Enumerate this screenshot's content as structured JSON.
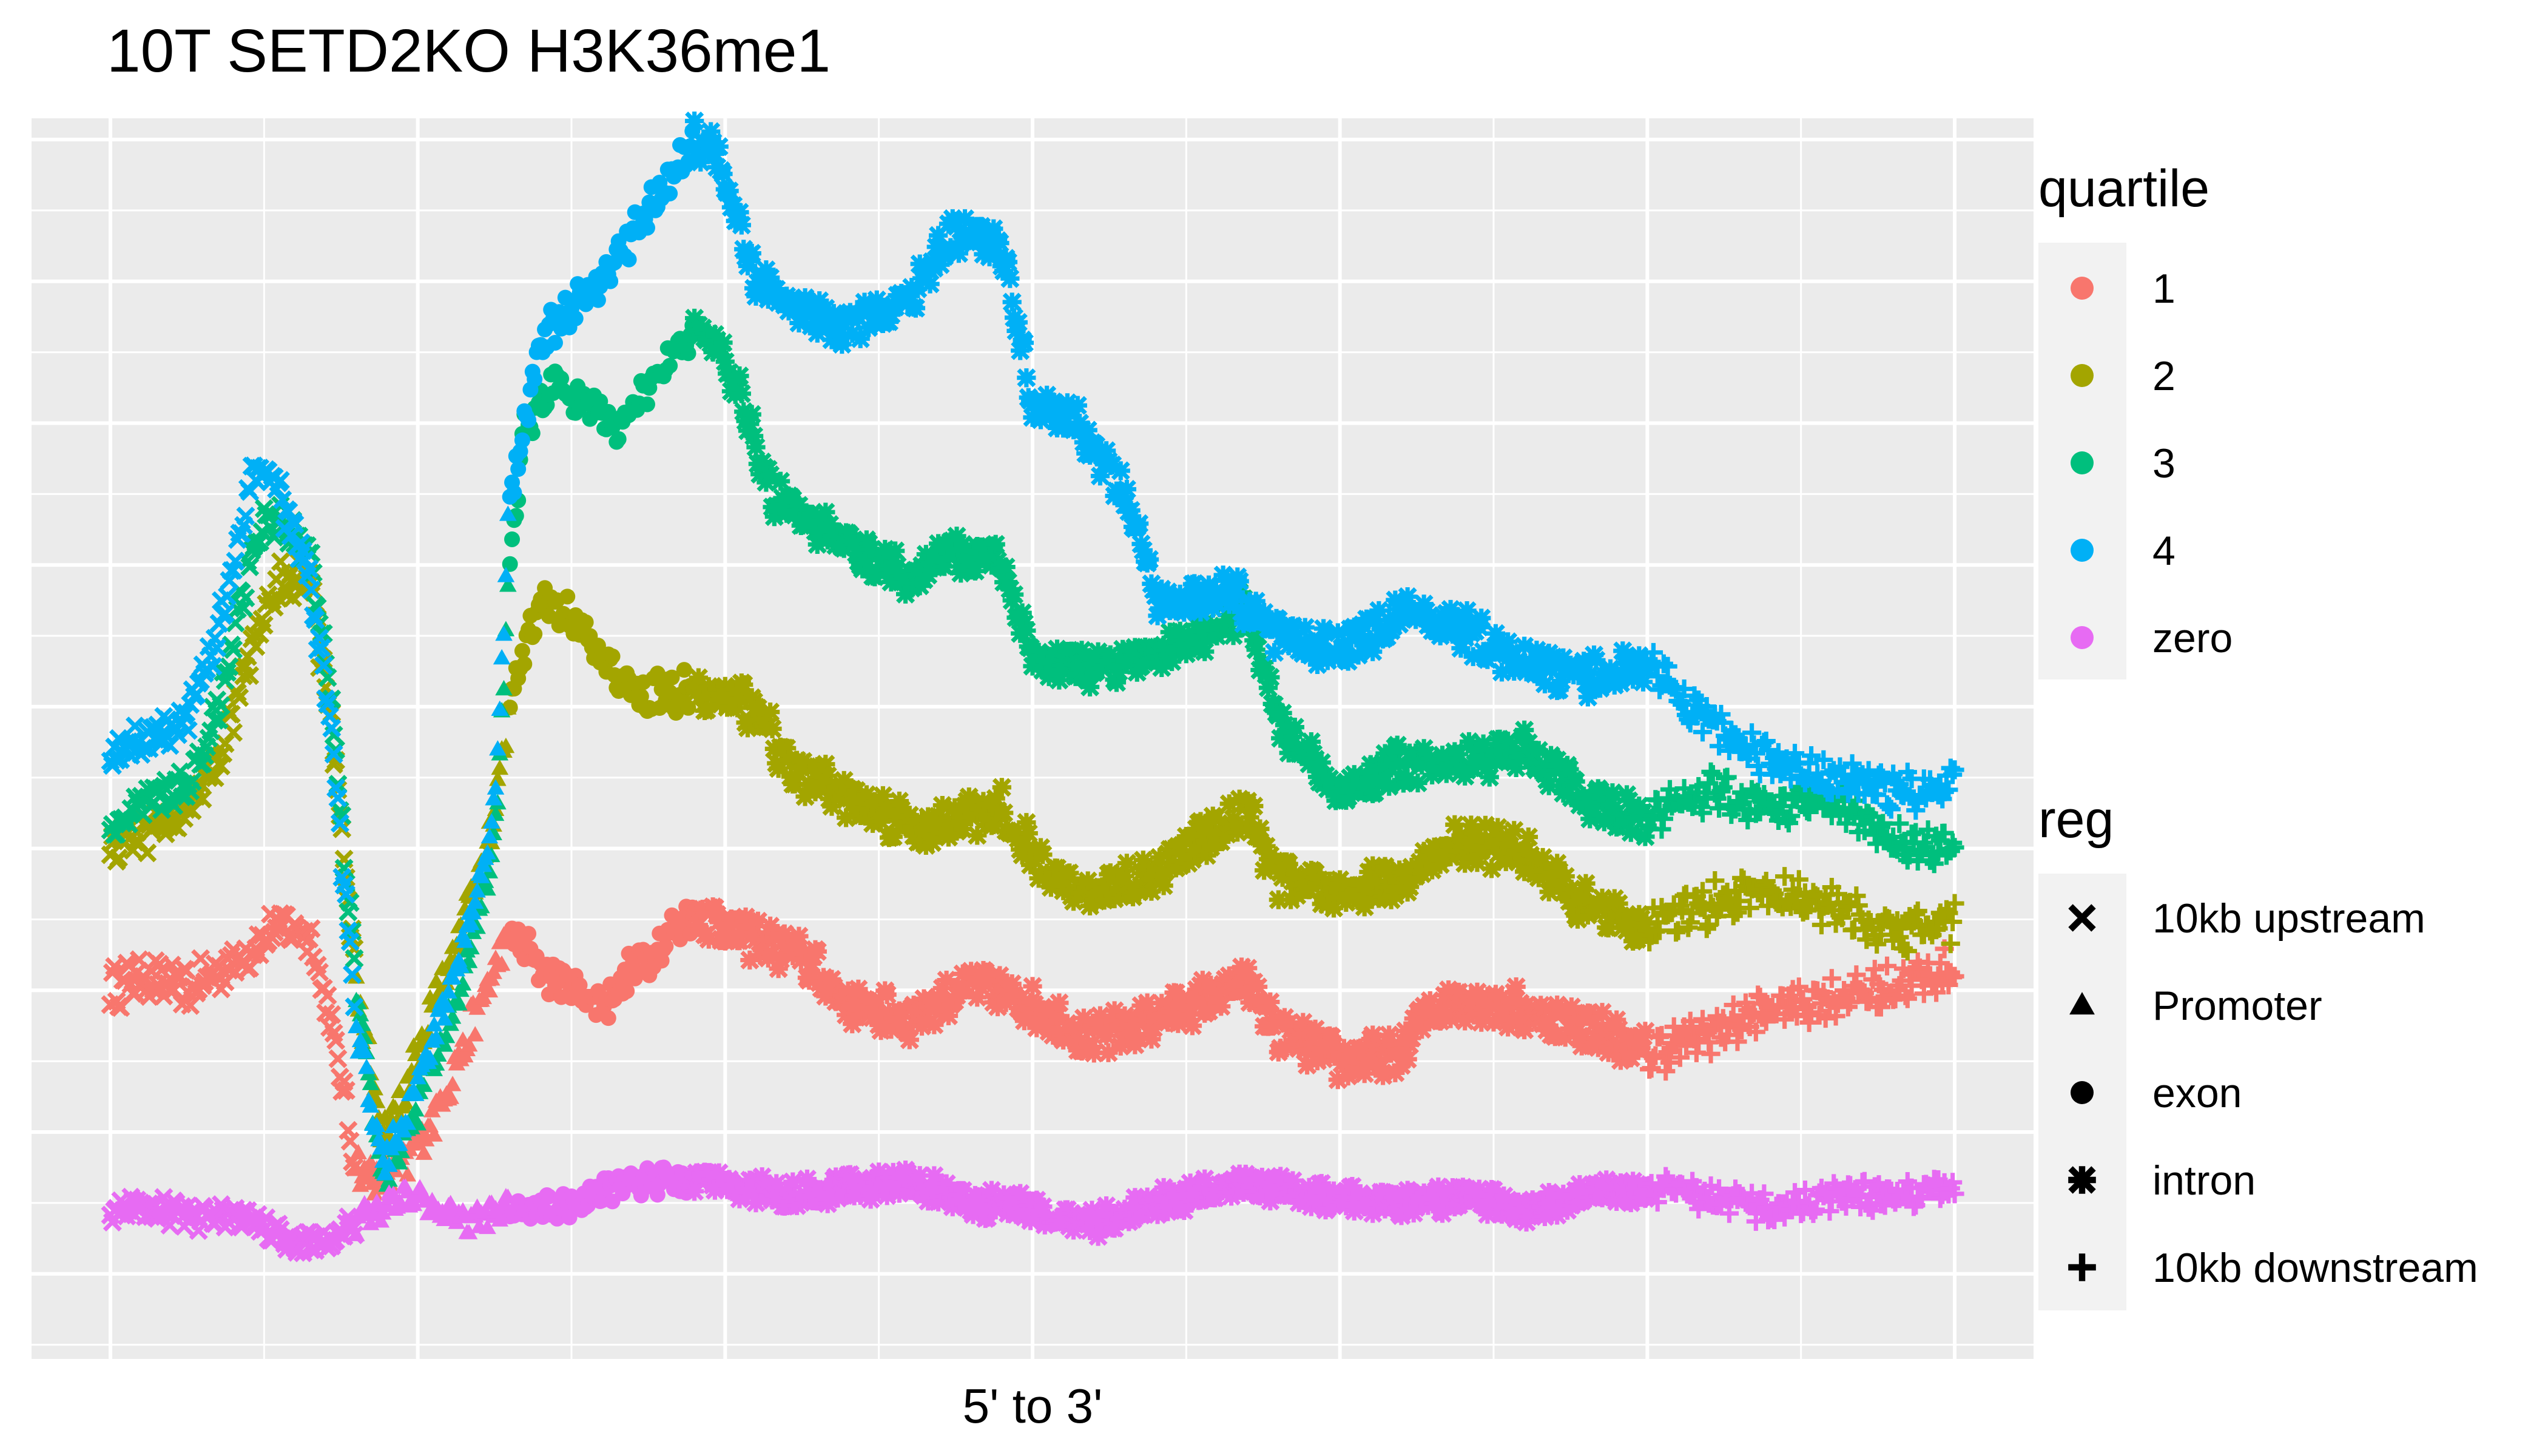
{
  "chart_data": {
    "type": "scatter",
    "title": "10T SETD2KO H3K36me1",
    "xlabel": "5' to 3'",
    "ylabel": "",
    "xlim": [
      0,
      600
    ],
    "ylim": [
      -12,
      163
    ],
    "grid": true,
    "legend_position": "right",
    "panel_background": "#EBEBEB",
    "region_boundaries": [
      {
        "from": 0,
        "to": 80,
        "reg": "10kb upstream"
      },
      {
        "from": 80,
        "to": 130,
        "reg": "Promoter"
      },
      {
        "from": 130,
        "to": 190,
        "reg": "exon"
      },
      {
        "from": 190,
        "to": 500,
        "reg": "intron"
      },
      {
        "from": 500,
        "to": 600,
        "reg": "10kb downstream"
      }
    ],
    "color_legend": {
      "title": "quartile",
      "entries": [
        {
          "label": "1",
          "color": "#F8766D"
        },
        {
          "label": "2",
          "color": "#A3A500"
        },
        {
          "label": "3",
          "color": "#00BF7D"
        },
        {
          "label": "4",
          "color": "#00B0F6"
        },
        {
          "label": "zero",
          "color": "#E76BF3"
        }
      ]
    },
    "shape_legend": {
      "title": "reg",
      "entries": [
        {
          "label": "10kb upstream",
          "symbol": "x-symbol"
        },
        {
          "label": "Promoter",
          "symbol": "triangle-symbol"
        },
        {
          "label": "exon",
          "symbol": "circle-symbol"
        },
        {
          "label": "intron",
          "symbol": "asterisk-symbol"
        },
        {
          "label": "10kb downstream",
          "symbol": "plus-symbol"
        }
      ]
    },
    "series": [
      {
        "name": "1",
        "color": "#F8766D",
        "noise": 2.5,
        "points": [
          [
            0,
            40
          ],
          [
            10,
            42
          ],
          [
            25,
            40
          ],
          [
            40,
            44
          ],
          [
            55,
            49
          ],
          [
            65,
            48
          ],
          [
            72,
            35
          ],
          [
            80,
            15
          ],
          [
            88,
            13
          ],
          [
            95,
            15
          ],
          [
            105,
            22
          ],
          [
            115,
            32
          ],
          [
            125,
            43
          ],
          [
            130,
            48
          ],
          [
            140,
            43
          ],
          [
            160,
            38
          ],
          [
            175,
            45
          ],
          [
            190,
            51
          ],
          [
            210,
            47
          ],
          [
            225,
            45
          ],
          [
            240,
            38
          ],
          [
            260,
            36
          ],
          [
            280,
            41
          ],
          [
            300,
            38
          ],
          [
            320,
            33
          ],
          [
            345,
            37
          ],
          [
            370,
            41
          ],
          [
            380,
            34
          ],
          [
            400,
            30
          ],
          [
            420,
            31
          ],
          [
            428,
            37
          ],
          [
            440,
            39
          ],
          [
            460,
            37
          ],
          [
            480,
            35
          ],
          [
            500,
            31
          ],
          [
            520,
            34
          ],
          [
            545,
            38
          ],
          [
            575,
            40
          ],
          [
            600,
            43
          ]
        ]
      },
      {
        "name": "2",
        "color": "#A3A500",
        "noise": 2.5,
        "points": [
          [
            0,
            60
          ],
          [
            10,
            62
          ],
          [
            25,
            65
          ],
          [
            35,
            73
          ],
          [
            45,
            86
          ],
          [
            55,
            98
          ],
          [
            65,
            97
          ],
          [
            72,
            78
          ],
          [
            80,
            40
          ],
          [
            88,
            20
          ],
          [
            95,
            24
          ],
          [
            105,
            38
          ],
          [
            115,
            49
          ],
          [
            125,
            65
          ],
          [
            130,
            80
          ],
          [
            140,
            96
          ],
          [
            150,
            92
          ],
          [
            170,
            82
          ],
          [
            190,
            82
          ],
          [
            210,
            80
          ],
          [
            220,
            72
          ],
          [
            240,
            67
          ],
          [
            265,
            62
          ],
          [
            290,
            66
          ],
          [
            305,
            56
          ],
          [
            320,
            54
          ],
          [
            340,
            56
          ],
          [
            350,
            60
          ],
          [
            370,
            65
          ],
          [
            380,
            56
          ],
          [
            400,
            53
          ],
          [
            420,
            56
          ],
          [
            440,
            61
          ],
          [
            460,
            59
          ],
          [
            480,
            52
          ],
          [
            500,
            49
          ],
          [
            520,
            52
          ],
          [
            540,
            54
          ],
          [
            560,
            52
          ],
          [
            580,
            48
          ],
          [
            600,
            50
          ]
        ]
      },
      {
        "name": "3",
        "color": "#00BF7D",
        "noise": 2.2,
        "points": [
          [
            0,
            63
          ],
          [
            10,
            67
          ],
          [
            25,
            69
          ],
          [
            35,
            80
          ],
          [
            45,
            100
          ],
          [
            50,
            108
          ],
          [
            60,
            104
          ],
          [
            65,
            102
          ],
          [
            72,
            80
          ],
          [
            80,
            40
          ],
          [
            88,
            14
          ],
          [
            95,
            18
          ],
          [
            105,
            30
          ],
          [
            115,
            42
          ],
          [
            125,
            60
          ],
          [
            130,
            100
          ],
          [
            135,
            120
          ],
          [
            145,
            126
          ],
          [
            165,
            120
          ],
          [
            180,
            128
          ],
          [
            192,
            134
          ],
          [
            205,
            125
          ],
          [
            215,
            110
          ],
          [
            240,
            103
          ],
          [
            260,
            98
          ],
          [
            275,
            102
          ],
          [
            290,
            100
          ],
          [
            300,
            87
          ],
          [
            320,
            85
          ],
          [
            345,
            88
          ],
          [
            370,
            94
          ],
          [
            380,
            77
          ],
          [
            400,
            68
          ],
          [
            420,
            72
          ],
          [
            440,
            72
          ],
          [
            460,
            74
          ],
          [
            480,
            67
          ],
          [
            500,
            64
          ],
          [
            520,
            68
          ],
          [
            540,
            66
          ],
          [
            560,
            67
          ],
          [
            580,
            61
          ],
          [
            600,
            60
          ]
        ]
      },
      {
        "name": "4",
        "color": "#00B0F6",
        "noise": 2.3,
        "points": [
          [
            0,
            73
          ],
          [
            10,
            75
          ],
          [
            25,
            78
          ],
          [
            35,
            90
          ],
          [
            45,
            110
          ],
          [
            48,
            114
          ],
          [
            55,
            110
          ],
          [
            65,
            98
          ],
          [
            72,
            75
          ],
          [
            80,
            35
          ],
          [
            88,
            16
          ],
          [
            95,
            20
          ],
          [
            105,
            33
          ],
          [
            115,
            47
          ],
          [
            125,
            66
          ],
          [
            130,
            110
          ],
          [
            140,
            132
          ],
          [
            160,
            140
          ],
          [
            175,
            150
          ],
          [
            190,
            160
          ],
          [
            198,
            158
          ],
          [
            210,
            140
          ],
          [
            240,
            133
          ],
          [
            260,
            138
          ],
          [
            275,
            147
          ],
          [
            290,
            145
          ],
          [
            300,
            123
          ],
          [
            315,
            120
          ],
          [
            330,
            110
          ],
          [
            340,
            95
          ],
          [
            365,
            96
          ],
          [
            380,
            90
          ],
          [
            400,
            88
          ],
          [
            420,
            93
          ],
          [
            440,
            91
          ],
          [
            460,
            86
          ],
          [
            480,
            84
          ],
          [
            500,
            86
          ],
          [
            520,
            78
          ],
          [
            540,
            72
          ],
          [
            560,
            70
          ],
          [
            580,
            68
          ],
          [
            600,
            69
          ]
        ]
      },
      {
        "name": "zero",
        "color": "#E76BF3",
        "noise": 1.6,
        "points": [
          [
            0,
            9
          ],
          [
            15,
            9
          ],
          [
            30,
            8
          ],
          [
            45,
            8
          ],
          [
            60,
            4
          ],
          [
            72,
            5
          ],
          [
            82,
            8
          ],
          [
            100,
            11
          ],
          [
            115,
            7
          ],
          [
            130,
            9
          ],
          [
            150,
            10
          ],
          [
            170,
            13
          ],
          [
            200,
            13
          ],
          [
            220,
            11
          ],
          [
            260,
            13
          ],
          [
            280,
            10
          ],
          [
            300,
            9
          ],
          [
            320,
            7
          ],
          [
            340,
            10
          ],
          [
            370,
            13
          ],
          [
            390,
            11
          ],
          [
            420,
            10
          ],
          [
            440,
            11
          ],
          [
            460,
            9
          ],
          [
            480,
            11
          ],
          [
            500,
            12
          ],
          [
            520,
            11
          ],
          [
            540,
            9
          ],
          [
            560,
            11
          ],
          [
            580,
            11
          ],
          [
            600,
            12
          ]
        ]
      }
    ]
  }
}
